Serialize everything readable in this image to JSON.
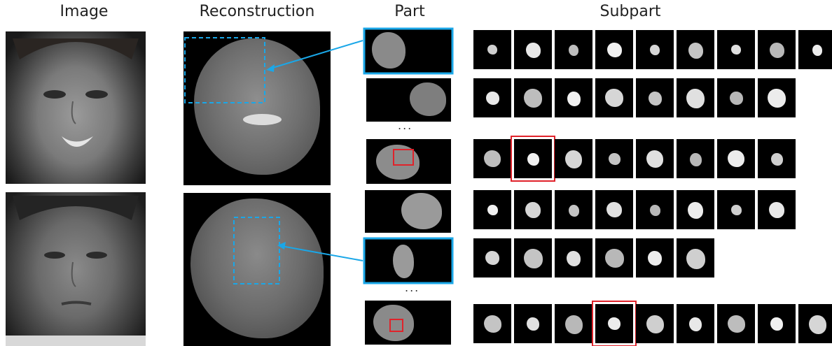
{
  "headers": {
    "image": "Image",
    "reconstruction": "Reconstruction",
    "part": "Part",
    "subpart": "Subpart"
  },
  "ellipsis": "...",
  "colors": {
    "highlight_blue": "#1aa7e8",
    "highlight_red": "#e0222a",
    "background": "#ffffff",
    "tile_background": "#000000"
  },
  "rows": [
    {
      "section": "face-1",
      "subpart_count": 9,
      "highlighted_subpart": null
    },
    {
      "section": "face-1",
      "subpart_count": 8,
      "highlighted_subpart": null
    },
    {
      "section": "face-1",
      "subpart_count": 8,
      "highlighted_subpart": 1
    },
    {
      "section": "face-2",
      "subpart_count": 8,
      "highlighted_subpart": null
    },
    {
      "section": "face-2",
      "subpart_count": 6,
      "highlighted_subpart": null
    },
    {
      "section": "face-2",
      "subpart_count": 9,
      "highlighted_subpart": 3
    }
  ]
}
